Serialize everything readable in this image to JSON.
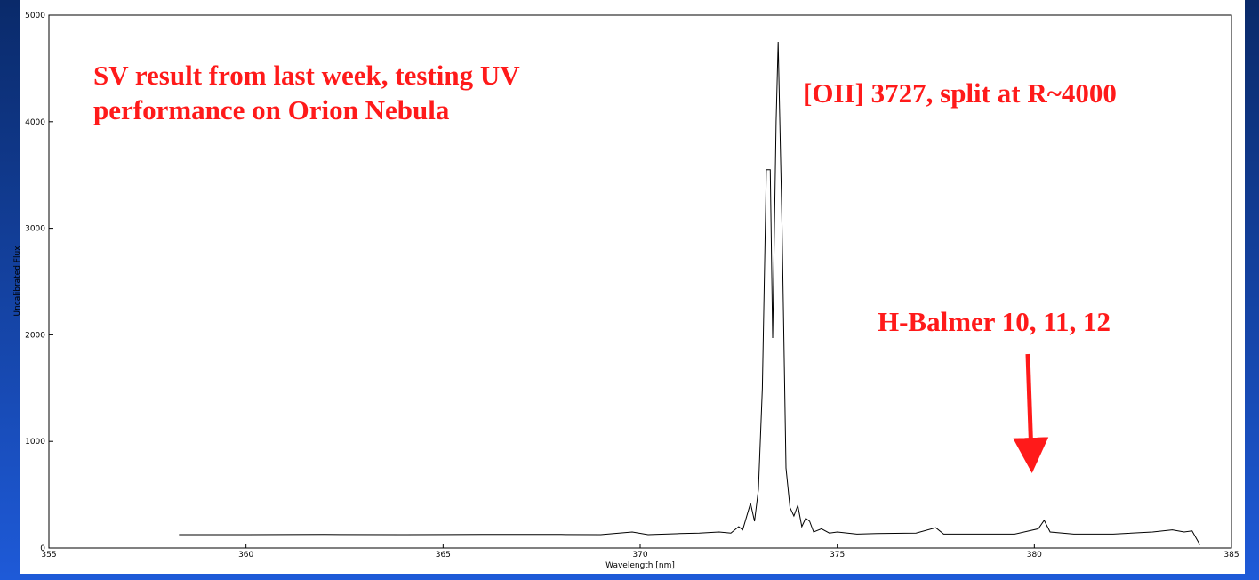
{
  "chart_data": {
    "type": "line",
    "x_label": "Wavelength [nm]",
    "y_label": "Uncalibrated Flux",
    "annotations": [
      {
        "lines": [
          "SV result from last week, testing UV",
          "performance on Orion Nebula"
        ]
      },
      {
        "lines": [
          "[OII] 3727, split at R~4000"
        ]
      },
      {
        "lines": [
          "H-Balmer 10, 11, 12"
        ]
      }
    ],
    "x": [
      358.3,
      360,
      362,
      364,
      366,
      368,
      369,
      369.8,
      370.2,
      371,
      371.5,
      372,
      372.3,
      372.5,
      372.6,
      372.8,
      372.9,
      373.0,
      373.1,
      373.2,
      373.3,
      373.36,
      373.45,
      373.5,
      373.6,
      373.7,
      373.8,
      373.9,
      374.0,
      374.1,
      374.2,
      374.3,
      374.4,
      374.6,
      374.8,
      375,
      375.5,
      376,
      377,
      377.5,
      377.7,
      378.5,
      379.5,
      380.1,
      380.25,
      380.4,
      381,
      382,
      383,
      383.5,
      383.8,
      384.0,
      384.2
    ],
    "series": [
      {
        "color": "#000000",
        "values": [
          125,
          125,
          127,
          125,
          127,
          127,
          125,
          150,
          125,
          135,
          140,
          150,
          140,
          200,
          170,
          420,
          250,
          550,
          1500,
          3550,
          3550,
          1970,
          4000,
          4750,
          3000,
          750,
          380,
          300,
          400,
          200,
          280,
          250,
          150,
          180,
          140,
          150,
          130,
          135,
          140,
          190,
          130,
          130,
          130,
          180,
          260,
          150,
          130,
          130,
          150,
          170,
          150,
          160,
          30
        ]
      }
    ],
    "xlim": [
      355,
      385
    ],
    "ylim": [
      0,
      5000
    ],
    "xticks": [
      355,
      360,
      365,
      370,
      375,
      380,
      385
    ],
    "yticks": [
      0,
      1000,
      2000,
      3000,
      4000,
      5000
    ]
  }
}
